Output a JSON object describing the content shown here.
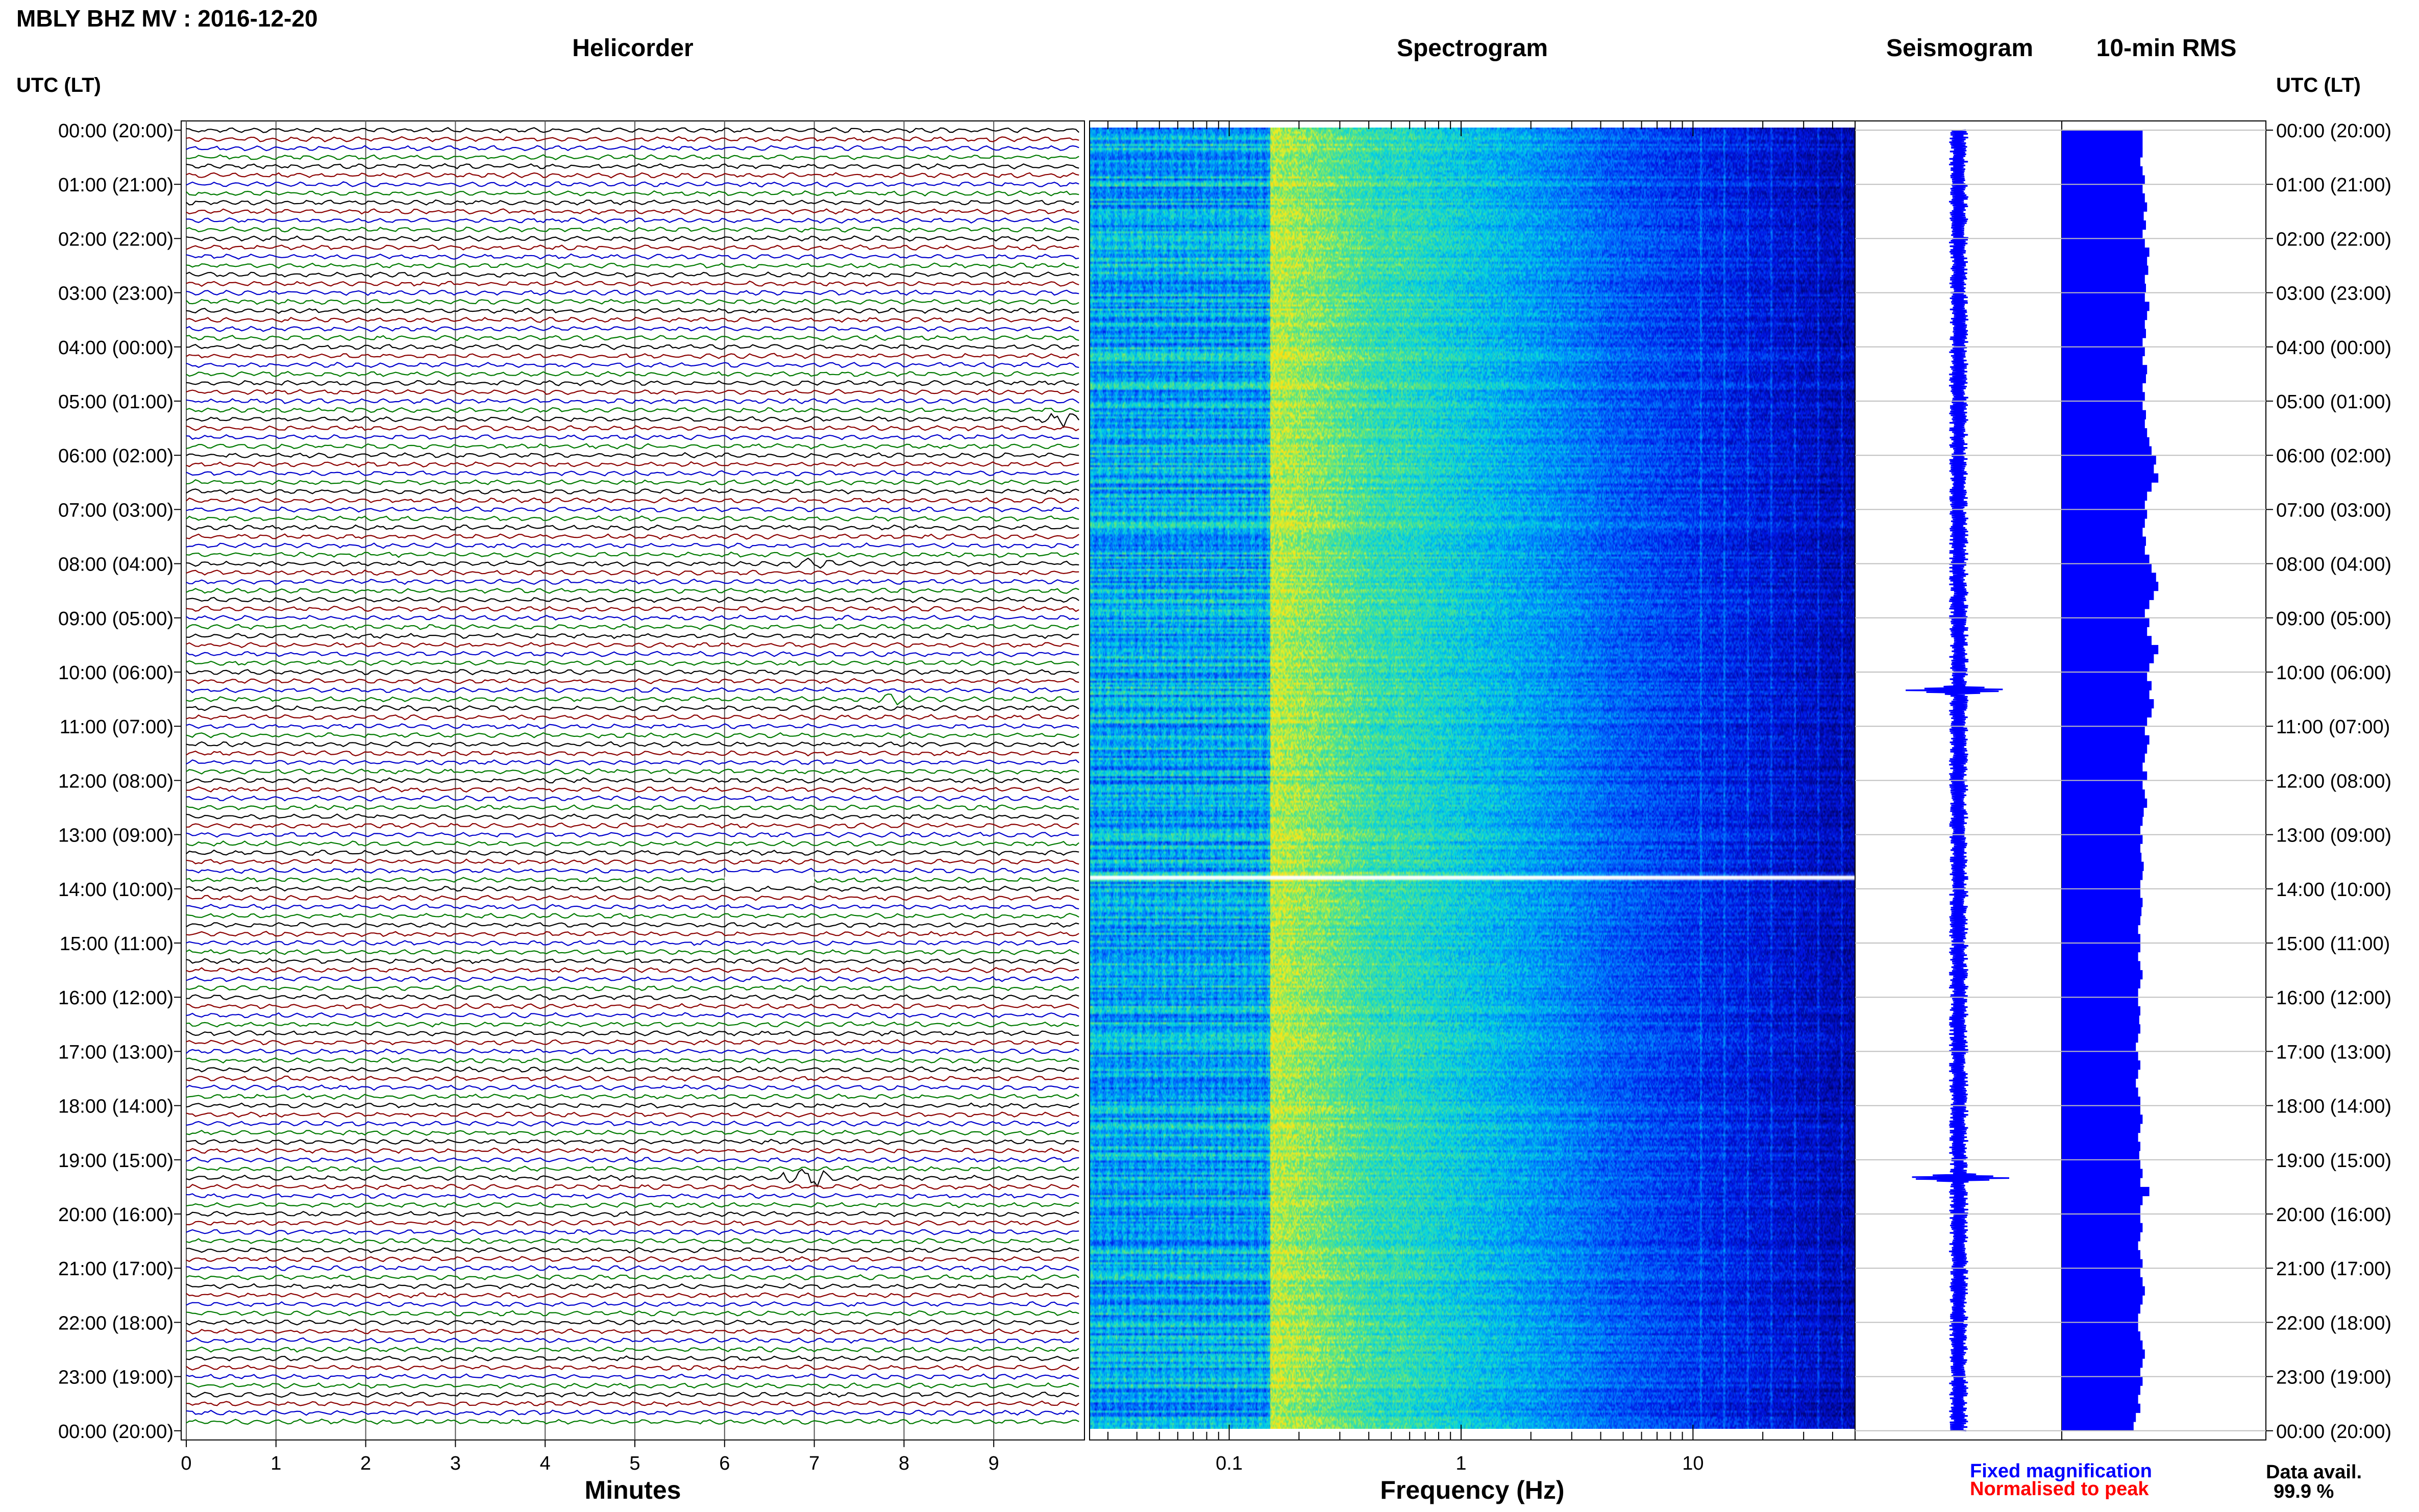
{
  "header": {
    "title": "MBLY BHZ MV : 2016-12-20",
    "utc_label": "UTC (LT)"
  },
  "panels": {
    "helicorder": "Helicorder",
    "spectrogram": "Spectrogram",
    "seismogram": "Seismogram",
    "rms": "10-min RMS"
  },
  "time_labels": [
    "00:00 (20:00)",
    "01:00 (21:00)",
    "02:00 (22:00)",
    "03:00 (23:00)",
    "04:00 (00:00)",
    "05:00 (01:00)",
    "06:00 (02:00)",
    "07:00 (03:00)",
    "08:00 (04:00)",
    "09:00 (05:00)",
    "10:00 (06:00)",
    "11:00 (07:00)",
    "12:00 (08:00)",
    "13:00 (09:00)",
    "14:00 (10:00)",
    "15:00 (11:00)",
    "16:00 (12:00)",
    "17:00 (13:00)",
    "18:00 (14:00)",
    "19:00 (15:00)",
    "20:00 (16:00)",
    "21:00 (17:00)",
    "22:00 (18:00)",
    "23:00 (19:00)",
    "00:00 (20:00)"
  ],
  "footer": {
    "fixed_mag": "Fixed magnification",
    "normalised": "Normalised to peak",
    "data_avail_label": "Data avail.",
    "data_avail_value": "99.9 %"
  },
  "colors": {
    "trace_cycle": [
      "#000000",
      "#8b0000",
      "#0000cc",
      "#007a00"
    ],
    "blue": "#0000ff",
    "red": "#ff0000",
    "grid": "#bfbfbf"
  },
  "chart_data": [
    {
      "type": "line",
      "name_panel": "Helicorder",
      "xlabel": "Minutes",
      "x_ticks": [
        0,
        1,
        2,
        3,
        4,
        5,
        6,
        7,
        8,
        9
      ],
      "xlim": [
        0,
        10
      ],
      "traces_per_hour": 6,
      "trace_minutes": 10,
      "hours": 24,
      "events": [
        {
          "time_utc": "19:20",
          "minute": 6.9,
          "color": "black",
          "relative_amplitude": 6
        },
        {
          "time_utc": "05:20",
          "minute": 9.8,
          "color": "blue",
          "relative_amplitude": 2.5
        },
        {
          "time_utc": "10:30",
          "minute": 7.8,
          "color": "darkred",
          "relative_amplitude": 2
        },
        {
          "time_utc": "08:00",
          "minute": 7.0,
          "color": "black",
          "relative_amplitude": 2
        }
      ],
      "data_gaps": [
        {
          "time_utc": "13:50",
          "minute_start": 6.0,
          "minute_end": 7.0
        }
      ]
    },
    {
      "type": "heatmap",
      "name_panel": "Spectrogram",
      "xlabel": "Frequency (Hz)",
      "x_scale": "log",
      "xlim": [
        0.025,
        50
      ],
      "x_tick_labels": [
        "0.1",
        "1",
        "10"
      ],
      "colormap": "blue-cyan-yellow",
      "peak_band_hz": [
        0.15,
        0.5
      ],
      "gap_time_utc": "13:50"
    },
    {
      "type": "line",
      "name_panel": "Seismogram",
      "spikes_utc": [
        "10:20",
        "19:20"
      ]
    },
    {
      "type": "bar",
      "name_panel": "10-min RMS",
      "bins_per_hour": 6,
      "relative_values": [
        0.72,
        0.72,
        0.72,
        0.7,
        0.72,
        0.74,
        0.72,
        0.74,
        0.76,
        0.73,
        0.75,
        0.72,
        0.74,
        0.78,
        0.76,
        0.77,
        0.74,
        0.75,
        0.74,
        0.78,
        0.76,
        0.74,
        0.75,
        0.72,
        0.74,
        0.72,
        0.76,
        0.75,
        0.72,
        0.74,
        0.72,
        0.75,
        0.74,
        0.76,
        0.78,
        0.8,
        0.84,
        0.82,
        0.86,
        0.8,
        0.76,
        0.74,
        0.76,
        0.74,
        0.72,
        0.75,
        0.74,
        0.78,
        0.8,
        0.84,
        0.86,
        0.82,
        0.78,
        0.74,
        0.78,
        0.76,
        0.8,
        0.86,
        0.82,
        0.78,
        0.76,
        0.8,
        0.78,
        0.82,
        0.8,
        0.76,
        0.74,
        0.78,
        0.76,
        0.74,
        0.72,
        0.76,
        0.72,
        0.74,
        0.76,
        0.73,
        0.72,
        0.7,
        0.72,
        0.7,
        0.71,
        0.73,
        0.72,
        0.7,
        0.7,
        0.72,
        0.71,
        0.7,
        0.68,
        0.7,
        0.7,
        0.68,
        0.7,
        0.72,
        0.7,
        0.68,
        0.68,
        0.7,
        0.69,
        0.7,
        0.68,
        0.66,
        0.68,
        0.7,
        0.68,
        0.66,
        0.68,
        0.7,
        0.7,
        0.72,
        0.7,
        0.68,
        0.7,
        0.69,
        0.7,
        0.72,
        0.7,
        0.78,
        0.72,
        0.7,
        0.7,
        0.72,
        0.7,
        0.68,
        0.7,
        0.72,
        0.7,
        0.72,
        0.74,
        0.72,
        0.7,
        0.68,
        0.68,
        0.7,
        0.72,
        0.74,
        0.72,
        0.7,
        0.72,
        0.7,
        0.68,
        0.7,
        0.66,
        0.64
      ]
    }
  ]
}
